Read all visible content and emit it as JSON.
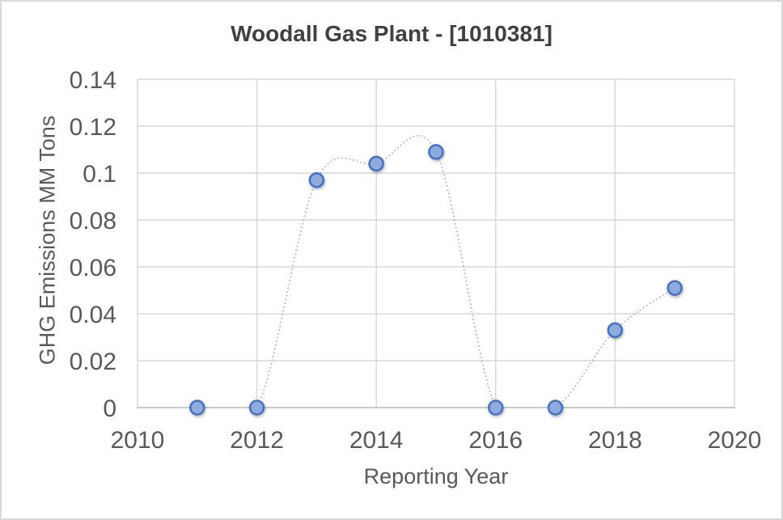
{
  "chart_data": {
    "type": "scatter",
    "title": "Woodall Gas Plant - [1010381]",
    "xlabel": "Reporting Year",
    "ylabel": "GHG Emissions MM Tons",
    "series": [
      {
        "name": "GHG Emissions MM Tons",
        "x": [
          2011,
          2012,
          2013,
          2014,
          2015,
          2016,
          2017,
          2018,
          2019
        ],
        "y": [
          0,
          0,
          0.097,
          0.104,
          0.109,
          0,
          0,
          0.033,
          0.051
        ]
      }
    ],
    "xlim": [
      2010,
      2020
    ],
    "ylim": [
      0,
      0.14
    ],
    "xticks": [
      2010,
      2012,
      2014,
      2016,
      2018,
      2020
    ],
    "yticks": [
      0,
      0.02,
      0.04,
      0.06,
      0.08,
      0.1,
      0.12,
      0.14
    ],
    "grid": true,
    "legend": false,
    "line_style": "dotted-smooth",
    "colors": {
      "marker_fill": "#8faadc",
      "marker_stroke": "#4472c4",
      "line": "#a6a6a6",
      "gridline": "#d9d9d9",
      "axis_line": "#bfbfbf",
      "tick_text": "#595959",
      "title_text": "#404040",
      "chart_border": "#d9d9d9"
    }
  }
}
